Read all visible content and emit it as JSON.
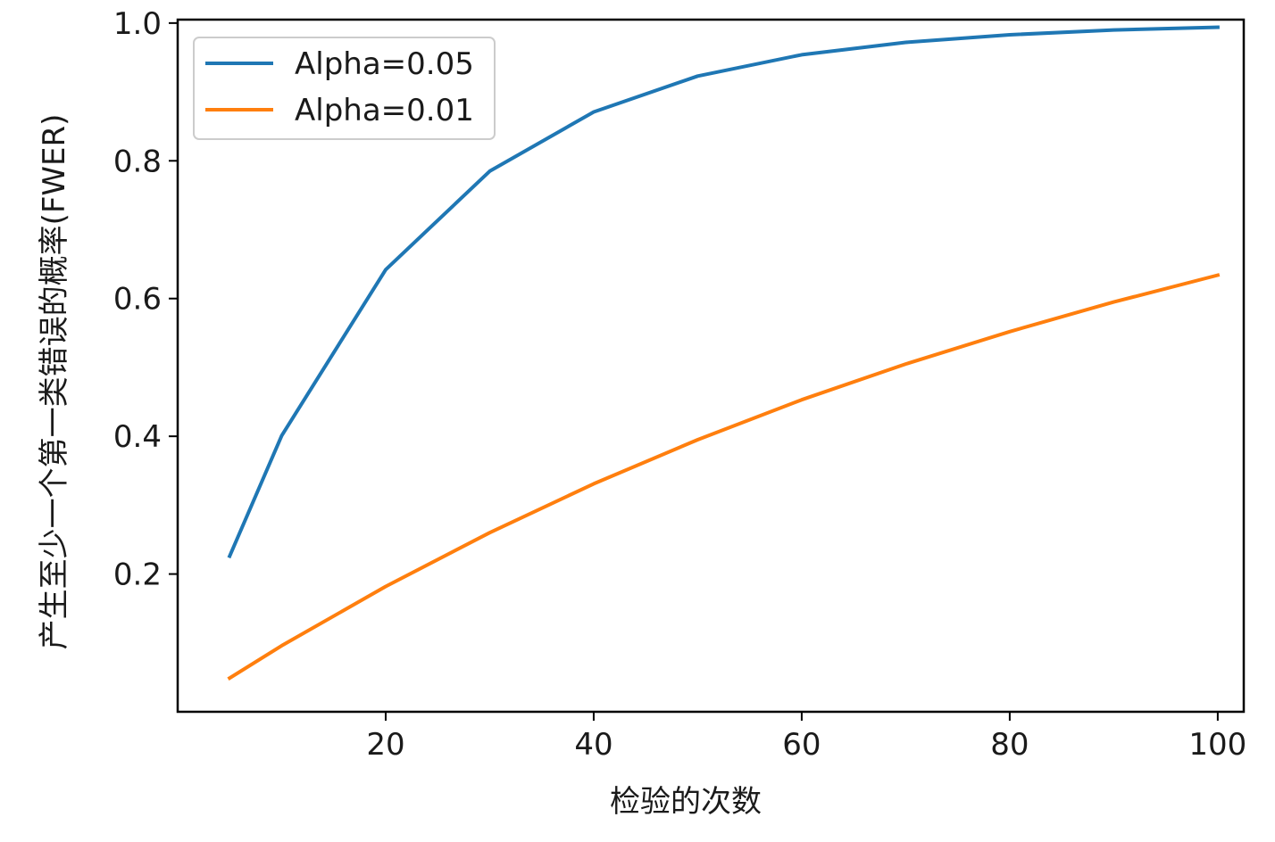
{
  "chart_data": {
    "type": "line",
    "title": "",
    "xlabel": "检验的次数",
    "ylabel": "产生至少一个第一类错误的概率(FWER)",
    "xlim": [
      0,
      102.5
    ],
    "ylim": [
      0.0,
      1.005
    ],
    "x_ticks": [
      20,
      40,
      60,
      80,
      100
    ],
    "y_ticks": [
      0.2,
      0.4,
      0.6,
      0.8,
      1.0
    ],
    "grid": false,
    "legend_position": "top-left",
    "x": [
      5,
      10,
      20,
      30,
      40,
      50,
      60,
      70,
      80,
      90,
      100
    ],
    "series": [
      {
        "name": "Alpha=0.05",
        "color": "#1f77b4",
        "values": [
          0.226,
          0.401,
          0.642,
          0.785,
          0.871,
          0.923,
          0.954,
          0.972,
          0.983,
          0.99,
          0.994
        ]
      },
      {
        "name": "Alpha=0.01",
        "color": "#ff7f0e",
        "values": [
          0.049,
          0.096,
          0.182,
          0.26,
          0.331,
          0.395,
          0.453,
          0.505,
          0.552,
          0.595,
          0.634
        ]
      }
    ]
  }
}
